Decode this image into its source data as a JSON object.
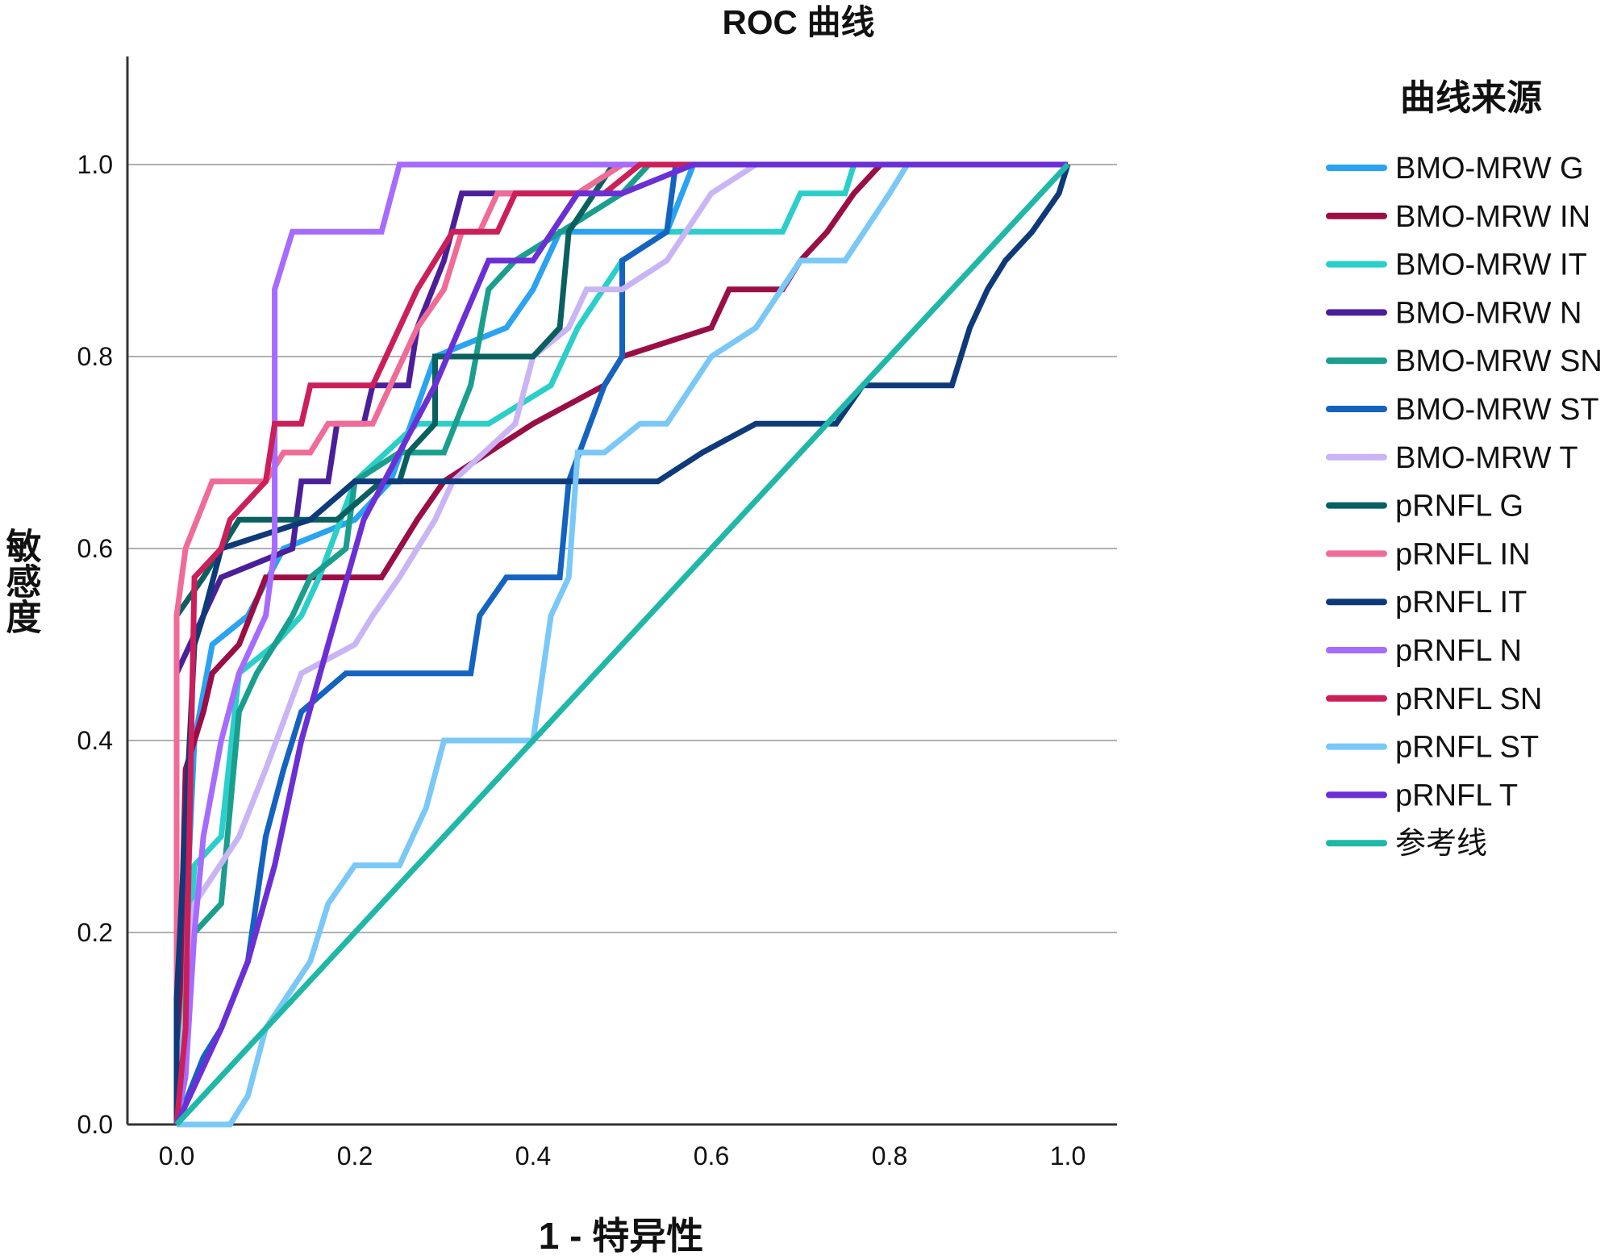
{
  "chart_data": {
    "type": "line",
    "title": "ROC 曲线",
    "xlabel": "1 - 特异性",
    "ylabel": "敏感度",
    "xlim": [
      0,
      1
    ],
    "ylim": [
      0,
      1.12
    ],
    "xticks": [
      "0.0",
      "0.2",
      "0.4",
      "0.6",
      "0.8",
      "1.0"
    ],
    "yticks": [
      "0.0",
      "0.2",
      "0.4",
      "0.6",
      "0.8",
      "1.0"
    ],
    "grid": "horizontal",
    "legend_title": "曲线来源",
    "legend_position": "right",
    "series": [
      {
        "name": "BMO-MRW G",
        "color": "#29a3f2",
        "points": [
          [
            0,
            0
          ],
          [
            0.02,
            0.4
          ],
          [
            0.04,
            0.5
          ],
          [
            0.08,
            0.53
          ],
          [
            0.12,
            0.6
          ],
          [
            0.2,
            0.63
          ],
          [
            0.24,
            0.67
          ],
          [
            0.29,
            0.8
          ],
          [
            0.37,
            0.83
          ],
          [
            0.4,
            0.87
          ],
          [
            0.43,
            0.93
          ],
          [
            0.55,
            0.93
          ],
          [
            0.58,
            1
          ],
          [
            1,
            1
          ]
        ]
      },
      {
        "name": "BMO-MRW IN",
        "color": "#9a0d45",
        "points": [
          [
            0,
            0
          ],
          [
            0.01,
            0.37
          ],
          [
            0.03,
            0.43
          ],
          [
            0.04,
            0.47
          ],
          [
            0.07,
            0.5
          ],
          [
            0.1,
            0.57
          ],
          [
            0.23,
            0.57
          ],
          [
            0.25,
            0.6
          ],
          [
            0.27,
            0.63
          ],
          [
            0.3,
            0.67
          ],
          [
            0.35,
            0.7
          ],
          [
            0.4,
            0.73
          ],
          [
            0.48,
            0.77
          ],
          [
            0.5,
            0.8
          ],
          [
            0.6,
            0.83
          ],
          [
            0.62,
            0.87
          ],
          [
            0.68,
            0.87
          ],
          [
            0.7,
            0.9
          ],
          [
            0.73,
            0.93
          ],
          [
            0.76,
            0.97
          ],
          [
            0.79,
            1
          ],
          [
            1,
            1
          ]
        ]
      },
      {
        "name": "BMO-MRW IT",
        "color": "#2acfc9",
        "points": [
          [
            0,
            0
          ],
          [
            0.02,
            0.27
          ],
          [
            0.05,
            0.3
          ],
          [
            0.07,
            0.47
          ],
          [
            0.11,
            0.5
          ],
          [
            0.14,
            0.53
          ],
          [
            0.16,
            0.57
          ],
          [
            0.2,
            0.67
          ],
          [
            0.27,
            0.73
          ],
          [
            0.35,
            0.73
          ],
          [
            0.42,
            0.77
          ],
          [
            0.45,
            0.83
          ],
          [
            0.5,
            0.9
          ],
          [
            0.55,
            0.93
          ],
          [
            0.68,
            0.93
          ],
          [
            0.7,
            0.97
          ],
          [
            0.75,
            0.97
          ],
          [
            0.76,
            1
          ],
          [
            1,
            1
          ]
        ]
      },
      {
        "name": "BMO-MRW N",
        "color": "#4b1f9a",
        "points": [
          [
            0,
            0
          ],
          [
            0,
            0.47
          ],
          [
            0.03,
            0.53
          ],
          [
            0.05,
            0.57
          ],
          [
            0.13,
            0.6
          ],
          [
            0.14,
            0.67
          ],
          [
            0.17,
            0.67
          ],
          [
            0.18,
            0.73
          ],
          [
            0.21,
            0.73
          ],
          [
            0.22,
            0.77
          ],
          [
            0.26,
            0.77
          ],
          [
            0.27,
            0.83
          ],
          [
            0.3,
            0.9
          ],
          [
            0.32,
            0.97
          ],
          [
            0.45,
            0.97
          ],
          [
            0.5,
            1
          ],
          [
            1,
            1
          ]
        ]
      },
      {
        "name": "BMO-MRW SN",
        "color": "#1a9e8e",
        "points": [
          [
            0,
            0
          ],
          [
            0.02,
            0.2
          ],
          [
            0.05,
            0.23
          ],
          [
            0.07,
            0.43
          ],
          [
            0.09,
            0.47
          ],
          [
            0.11,
            0.5
          ],
          [
            0.13,
            0.53
          ],
          [
            0.15,
            0.57
          ],
          [
            0.19,
            0.6
          ],
          [
            0.2,
            0.67
          ],
          [
            0.25,
            0.7
          ],
          [
            0.3,
            0.7
          ],
          [
            0.33,
            0.77
          ],
          [
            0.35,
            0.87
          ],
          [
            0.38,
            0.9
          ],
          [
            0.5,
            0.97
          ],
          [
            0.53,
            1
          ],
          [
            1,
            1
          ]
        ]
      },
      {
        "name": "BMO-MRW ST",
        "color": "#1463c0",
        "points": [
          [
            0,
            0
          ],
          [
            0.03,
            0.07
          ],
          [
            0.05,
            0.1
          ],
          [
            0.08,
            0.17
          ],
          [
            0.1,
            0.3
          ],
          [
            0.12,
            0.37
          ],
          [
            0.14,
            0.43
          ],
          [
            0.19,
            0.47
          ],
          [
            0.33,
            0.47
          ],
          [
            0.34,
            0.53
          ],
          [
            0.37,
            0.57
          ],
          [
            0.43,
            0.57
          ],
          [
            0.44,
            0.67
          ],
          [
            0.48,
            0.77
          ],
          [
            0.5,
            0.8
          ],
          [
            0.5,
            0.9
          ],
          [
            0.55,
            0.93
          ],
          [
            0.56,
            1
          ],
          [
            1,
            1
          ]
        ]
      },
      {
        "name": "BMO-MRW T",
        "color": "#c9b4f5",
        "points": [
          [
            0,
            0
          ],
          [
            0.02,
            0.23
          ],
          [
            0.07,
            0.3
          ],
          [
            0.1,
            0.37
          ],
          [
            0.14,
            0.47
          ],
          [
            0.2,
            0.5
          ],
          [
            0.22,
            0.53
          ],
          [
            0.25,
            0.57
          ],
          [
            0.29,
            0.63
          ],
          [
            0.31,
            0.67
          ],
          [
            0.38,
            0.73
          ],
          [
            0.4,
            0.8
          ],
          [
            0.44,
            0.83
          ],
          [
            0.46,
            0.87
          ],
          [
            0.5,
            0.87
          ],
          [
            0.55,
            0.9
          ],
          [
            0.6,
            0.97
          ],
          [
            0.65,
            1
          ],
          [
            1,
            1
          ]
        ]
      },
      {
        "name": "pRNFL G",
        "color": "#0a6060",
        "points": [
          [
            0,
            0
          ],
          [
            0,
            0.53
          ],
          [
            0.03,
            0.57
          ],
          [
            0.07,
            0.63
          ],
          [
            0.18,
            0.63
          ],
          [
            0.23,
            0.67
          ],
          [
            0.25,
            0.67
          ],
          [
            0.26,
            0.7
          ],
          [
            0.29,
            0.73
          ],
          [
            0.29,
            0.8
          ],
          [
            0.4,
            0.8
          ],
          [
            0.43,
            0.83
          ],
          [
            0.44,
            0.93
          ],
          [
            0.49,
            1
          ],
          [
            1,
            1
          ]
        ]
      },
      {
        "name": "pRNFL IN",
        "color": "#f06b96",
        "points": [
          [
            0,
            0
          ],
          [
            0,
            0.53
          ],
          [
            0.01,
            0.6
          ],
          [
            0.04,
            0.67
          ],
          [
            0.1,
            0.67
          ],
          [
            0.12,
            0.7
          ],
          [
            0.15,
            0.7
          ],
          [
            0.17,
            0.73
          ],
          [
            0.22,
            0.73
          ],
          [
            0.27,
            0.83
          ],
          [
            0.3,
            0.87
          ],
          [
            0.32,
            0.93
          ],
          [
            0.34,
            0.93
          ],
          [
            0.36,
            0.97
          ],
          [
            0.45,
            0.97
          ],
          [
            0.5,
            1
          ],
          [
            1,
            1
          ]
        ]
      },
      {
        "name": "pRNFL IT",
        "color": "#0e3a7a",
        "points": [
          [
            0,
            0
          ],
          [
            0,
            0.13
          ],
          [
            0.02,
            0.5
          ],
          [
            0.03,
            0.53
          ],
          [
            0.05,
            0.6
          ],
          [
            0.15,
            0.63
          ],
          [
            0.2,
            0.67
          ],
          [
            0.54,
            0.67
          ],
          [
            0.59,
            0.7
          ],
          [
            0.65,
            0.73
          ],
          [
            0.74,
            0.73
          ],
          [
            0.77,
            0.77
          ],
          [
            0.87,
            0.77
          ],
          [
            0.89,
            0.83
          ],
          [
            0.91,
            0.87
          ],
          [
            0.93,
            0.9
          ],
          [
            0.96,
            0.93
          ],
          [
            0.99,
            0.97
          ],
          [
            1,
            1
          ]
        ]
      },
      {
        "name": "pRNFL N",
        "color": "#a66bff",
        "points": [
          [
            0,
            0
          ],
          [
            0.01,
            0.05
          ],
          [
            0.02,
            0.2
          ],
          [
            0.03,
            0.3
          ],
          [
            0.05,
            0.4
          ],
          [
            0.07,
            0.47
          ],
          [
            0.1,
            0.53
          ],
          [
            0.11,
            0.6
          ],
          [
            0.11,
            0.73
          ],
          [
            0.11,
            0.87
          ],
          [
            0.12,
            0.9
          ],
          [
            0.13,
            0.93
          ],
          [
            0.23,
            0.93
          ],
          [
            0.25,
            1
          ],
          [
            1,
            1
          ]
        ]
      },
      {
        "name": "pRNFL SN",
        "color": "#cc1f5a",
        "points": [
          [
            0,
            0
          ],
          [
            0.01,
            0.1
          ],
          [
            0.02,
            0.57
          ],
          [
            0.05,
            0.6
          ],
          [
            0.06,
            0.63
          ],
          [
            0.1,
            0.67
          ],
          [
            0.11,
            0.73
          ],
          [
            0.14,
            0.73
          ],
          [
            0.15,
            0.77
          ],
          [
            0.22,
            0.77
          ],
          [
            0.27,
            0.87
          ],
          [
            0.29,
            0.9
          ],
          [
            0.31,
            0.93
          ],
          [
            0.36,
            0.93
          ],
          [
            0.38,
            0.97
          ],
          [
            0.48,
            0.97
          ],
          [
            0.52,
            1
          ],
          [
            1,
            1
          ]
        ]
      },
      {
        "name": "pRNFL ST",
        "color": "#79c8f7",
        "points": [
          [
            0,
            0
          ],
          [
            0.06,
            0
          ],
          [
            0.08,
            0.03
          ],
          [
            0.1,
            0.1
          ],
          [
            0.15,
            0.17
          ],
          [
            0.17,
            0.23
          ],
          [
            0.2,
            0.27
          ],
          [
            0.25,
            0.27
          ],
          [
            0.28,
            0.33
          ],
          [
            0.3,
            0.4
          ],
          [
            0.4,
            0.4
          ],
          [
            0.42,
            0.53
          ],
          [
            0.44,
            0.57
          ],
          [
            0.45,
            0.7
          ],
          [
            0.48,
            0.7
          ],
          [
            0.52,
            0.73
          ],
          [
            0.55,
            0.73
          ],
          [
            0.6,
            0.8
          ],
          [
            0.65,
            0.83
          ],
          [
            0.7,
            0.9
          ],
          [
            0.75,
            0.9
          ],
          [
            0.8,
            0.97
          ],
          [
            0.82,
            1
          ],
          [
            1,
            1
          ]
        ]
      },
      {
        "name": "pRNFL T",
        "color": "#6b2fd6",
        "points": [
          [
            0,
            0
          ],
          [
            0.05,
            0.1
          ],
          [
            0.08,
            0.17
          ],
          [
            0.11,
            0.27
          ],
          [
            0.14,
            0.4
          ],
          [
            0.17,
            0.5
          ],
          [
            0.21,
            0.63
          ],
          [
            0.25,
            0.7
          ],
          [
            0.29,
            0.77
          ],
          [
            0.35,
            0.9
          ],
          [
            0.4,
            0.9
          ],
          [
            0.45,
            0.97
          ],
          [
            0.5,
            0.97
          ],
          [
            0.58,
            1
          ],
          [
            1,
            1
          ]
        ]
      },
      {
        "name": "参考线",
        "color": "#1fb8a8",
        "points": [
          [
            0,
            0
          ],
          [
            1,
            1
          ]
        ]
      }
    ]
  }
}
